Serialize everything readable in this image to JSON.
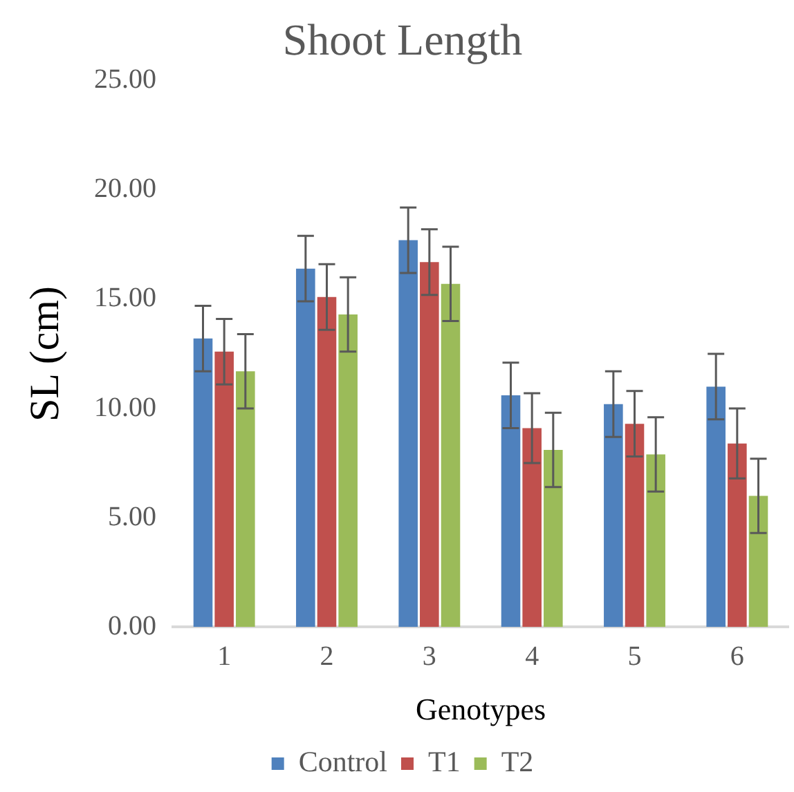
{
  "chart_data": {
    "type": "bar",
    "title": "Shoot Length",
    "xlabel": "Genotypes",
    "ylabel": "SL (cm)",
    "categories": [
      "1",
      "2",
      "3",
      "4",
      "5",
      "6"
    ],
    "series": [
      {
        "name": "Control",
        "color": "#4f81bd",
        "values": [
          13.2,
          16.4,
          17.7,
          10.6,
          10.2,
          11.0
        ],
        "errors": [
          1.5,
          1.5,
          1.5,
          1.5,
          1.5,
          1.5
        ]
      },
      {
        "name": "T1",
        "color": "#c0504d",
        "values": [
          12.6,
          15.1,
          16.7,
          9.1,
          9.3,
          8.4
        ],
        "errors": [
          1.5,
          1.5,
          1.5,
          1.6,
          1.5,
          1.6
        ]
      },
      {
        "name": "T2",
        "color": "#9bbb59",
        "values": [
          11.7,
          14.3,
          15.7,
          8.1,
          7.9,
          6.0
        ],
        "errors": [
          1.7,
          1.7,
          1.7,
          1.7,
          1.7,
          1.7
        ]
      }
    ],
    "ylim": [
      0,
      25
    ],
    "yticks": [
      {
        "value": 0,
        "label": "0.00"
      },
      {
        "value": 5,
        "label": "5.00"
      },
      {
        "value": 10,
        "label": "10.00"
      },
      {
        "value": 15,
        "label": "15.00"
      },
      {
        "value": 20,
        "label": "20.00"
      },
      {
        "value": 25,
        "label": "25.00"
      }
    ],
    "grid": false,
    "legend": "bottom"
  }
}
